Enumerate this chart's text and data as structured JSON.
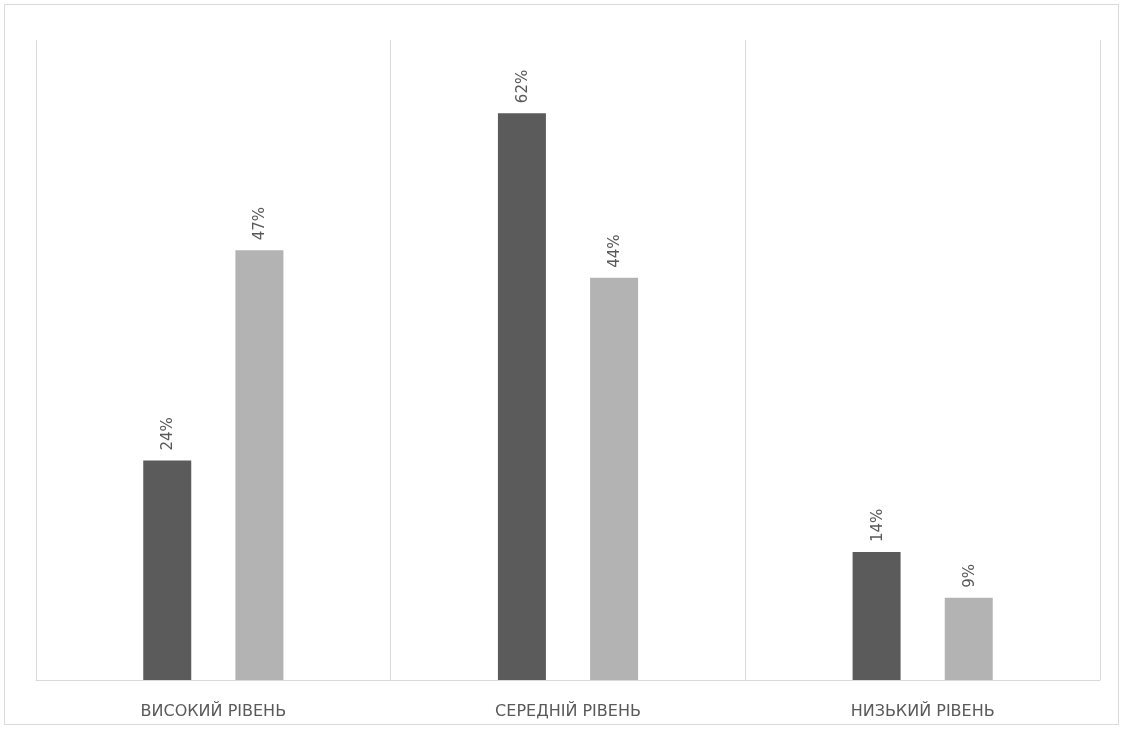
{
  "chart_data": {
    "type": "bar",
    "categories": [
      "ВИСОКИЙ РІВЕНЬ",
      "СЕРЕДНІЙ РІВЕНЬ",
      "НИЗЬКИЙ РІВЕНЬ"
    ],
    "series": [
      {
        "color": "#5b5b5b",
        "values": [
          24,
          62,
          14
        ],
        "value_labels": [
          "24%",
          "62%",
          "14%"
        ]
      },
      {
        "color": "#b3b3b3",
        "values": [
          47,
          44,
          9
        ],
        "value_labels": [
          "47%",
          "44%",
          "9%"
        ]
      }
    ],
    "ylim": [
      0,
      70
    ],
    "tick_labels": "x",
    "grid": "x"
  }
}
